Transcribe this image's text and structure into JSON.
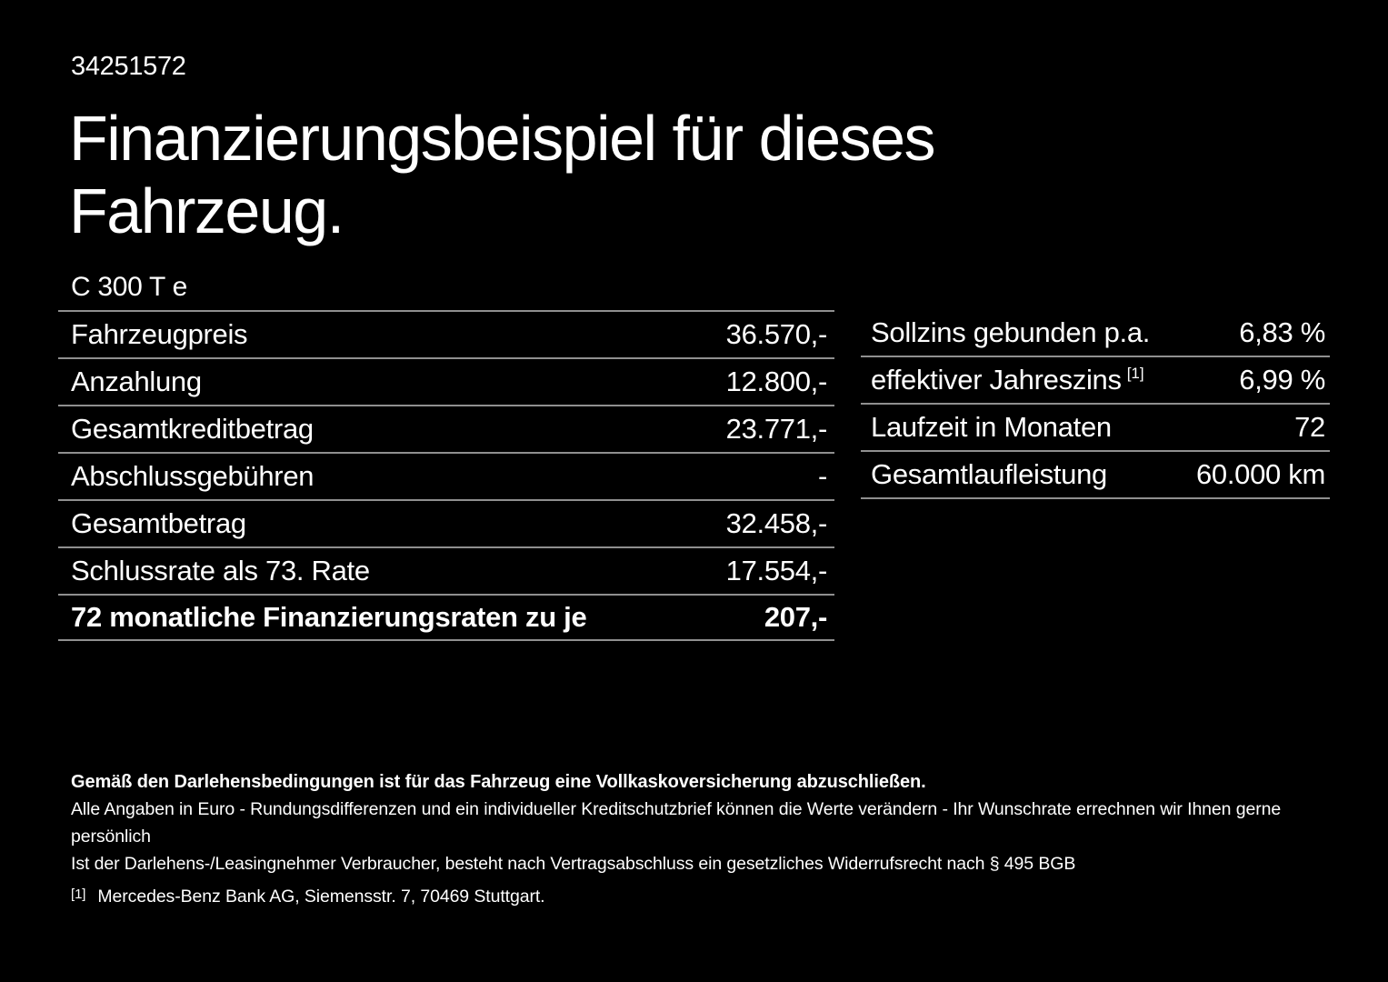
{
  "page": {
    "doc_number": "34251572",
    "title_line1": "Finanzierungsbeispiel für dieses",
    "title_line2": "Fahrzeug.",
    "model": "C 300 T e"
  },
  "finance_table": {
    "rows": [
      {
        "label": "Fahrzeugpreis",
        "value": "36.570,-",
        "bold": false
      },
      {
        "label": "Anzahlung",
        "value": "12.800,-",
        "bold": false
      },
      {
        "label": "Gesamtkreditbetrag",
        "value": "23.771,-",
        "bold": false
      },
      {
        "label": "Abschlussgebühren",
        "value": "-",
        "bold": false
      },
      {
        "label": "Gesamtbetrag",
        "value": "32.458,-",
        "bold": false
      },
      {
        "label": "Schlussrate als 73. Rate",
        "value": "17.554,-",
        "bold": false
      },
      {
        "label": "72 monatliche Finanzierungsraten zu je",
        "value": "207,-",
        "bold": true
      }
    ]
  },
  "conditions_table": {
    "rows": [
      {
        "label": "Sollzins gebunden p.a.",
        "sup": "",
        "value": "6,83 %",
        "bold": false
      },
      {
        "label": "effektiver Jahreszins",
        "sup": "[1]",
        "value": "6,99 %",
        "bold": false
      },
      {
        "label": "Laufzeit in Monaten",
        "sup": "",
        "value": "72",
        "bold": false
      },
      {
        "label": "Gesamtlaufleistung",
        "sup": "",
        "value": "60.000 km",
        "bold": false
      }
    ]
  },
  "footer": {
    "insurance_note": "Gemäß den Darlehensbedingungen ist für das Fahrzeug eine Vollkaskoversicherung abzuschließen.",
    "disclaimer_line1": "Alle Angaben in Euro - Rundungsdifferenzen und ein individueller Kreditschutzbrief können die Werte verändern - Ihr Wunschrate errechnen wir Ihnen gerne persönlich",
    "disclaimer_line2": "Ist der Darlehens-/Leasingnehmer Verbraucher, besteht nach Vertragsabschluss ein gesetzliches Widerrufsrecht nach § 495 BGB",
    "footnote_marker": "[1]",
    "footnote_text": "Mercedes-Benz Bank AG, Siemensstr. 7, 70469 Stuttgart."
  },
  "colors": {
    "background": "#000000",
    "text": "#ffffff",
    "divider": "#8f8f8f"
  }
}
